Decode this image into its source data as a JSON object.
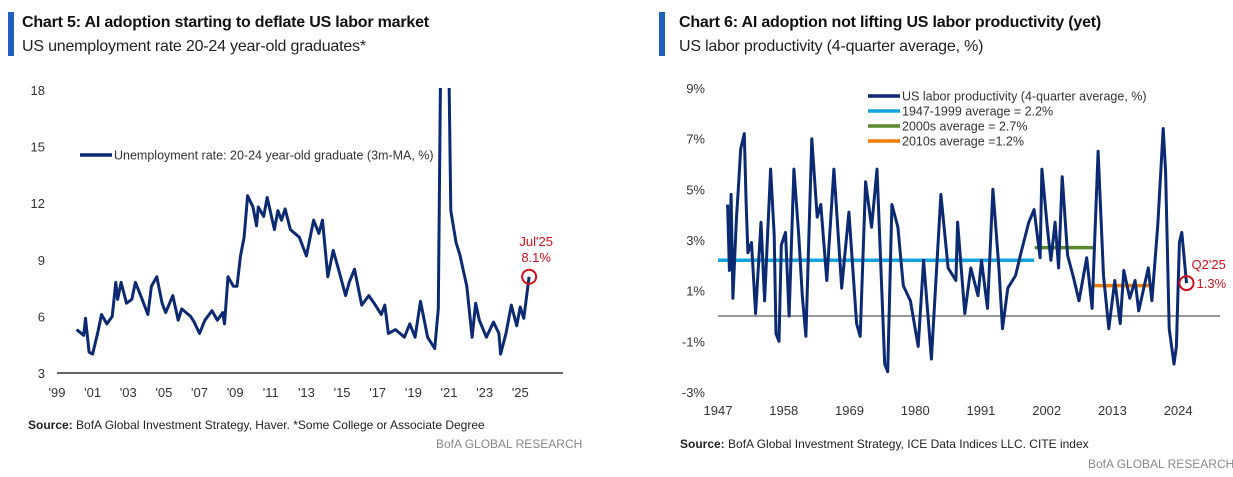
{
  "colors": {
    "accent": "#1f5fbf",
    "series": "#0b2a72",
    "highlight": "#d0101b",
    "avg_1947_1999": "#13a3e0",
    "avg_2000s": "#5a8a2f",
    "avg_2010s": "#f07d00",
    "zero_line": "#777777"
  },
  "chart_data": [
    {
      "type": "line",
      "title": "Chart 5: AI adoption starting to deflate US labor market",
      "subtitle": "US unemployment rate 20-24 year-old graduates*",
      "source_label": "Source:",
      "source": "BofA Global Investment Strategy, Haver. *Some College or Associate Degree",
      "brand": "BofA GLOBAL RESEARCH",
      "ylim": [
        3,
        18
      ],
      "xlim": [
        1999,
        2027.4
      ],
      "yticks": [
        "18",
        "15",
        "12",
        "9",
        "6",
        "3"
      ],
      "ytick_values": [
        18,
        15,
        12,
        9,
        6,
        3
      ],
      "xticks": [
        "'99",
        "'01",
        "'03",
        "'05",
        "'07",
        "'09",
        "'11",
        "'13",
        "'15",
        "'17",
        "'19",
        "'21",
        "'23",
        "'25"
      ],
      "xtick_values": [
        1999,
        2001,
        2003,
        2005,
        2007,
        2009,
        2011,
        2013,
        2015,
        2017,
        2019,
        2021,
        2023,
        2025
      ],
      "legend": "top-left",
      "grid": false,
      "series": [
        {
          "name": "Unemployment rate: 20-24 year-old graduate (3m-MA, %)",
          "x": [
            2000.1,
            2000.5,
            2000.6,
            2000.8,
            2001.0,
            2001.3,
            2001.5,
            2001.8,
            2002.1,
            2002.3,
            2002.4,
            2002.6,
            2002.9,
            2003.2,
            2003.4,
            2003.7,
            2004.1,
            2004.3,
            2004.6,
            2004.9,
            2005.1,
            2005.5,
            2005.8,
            2006.0,
            2006.5,
            2006.7,
            2007.0,
            2007.3,
            2007.7,
            2008.0,
            2008.3,
            2008.4,
            2008.6,
            2008.9,
            2009.1,
            2009.3,
            2009.5,
            2009.7,
            2010.0,
            2010.2,
            2010.3,
            2010.6,
            2010.8,
            2011.2,
            2011.4,
            2011.6,
            2011.8,
            2012.1,
            2012.6,
            2013.0,
            2013.4,
            2013.7,
            2013.9,
            2014.2,
            2014.5,
            2014.8,
            2015.2,
            2015.4,
            2015.7,
            2016.1,
            2016.5,
            2016.8,
            2017.2,
            2017.4,
            2017.6,
            2018.0,
            2018.5,
            2018.8,
            2019.1,
            2019.4,
            2019.8,
            2020.2,
            2020.4,
            2020.6,
            2020.9,
            2021.1,
            2021.4,
            2021.6,
            2022.0,
            2022.3,
            2022.5,
            2022.7,
            2023.1,
            2023.5,
            2023.8,
            2023.9,
            2024.2,
            2024.5,
            2024.8,
            2025.0,
            2025.2,
            2025.5
          ],
          "y": [
            5.3,
            5.0,
            5.9,
            4.1,
            4.0,
            5.2,
            6.1,
            5.6,
            6.0,
            7.8,
            6.9,
            7.8,
            6.7,
            6.9,
            7.8,
            7.1,
            6.1,
            7.6,
            8.1,
            6.7,
            6.2,
            7.1,
            5.8,
            6.4,
            6.0,
            5.7,
            5.1,
            5.8,
            6.3,
            5.8,
            6.2,
            5.6,
            8.1,
            7.6,
            7.6,
            9.2,
            10.2,
            12.4,
            11.8,
            10.8,
            11.8,
            11.3,
            12.3,
            10.6,
            11.6,
            11.1,
            11.7,
            10.6,
            10.2,
            9.2,
            11.1,
            10.4,
            11.1,
            8.1,
            9.5,
            8.5,
            7.1,
            7.8,
            8.5,
            6.6,
            7.1,
            6.7,
            6.1,
            6.6,
            5.1,
            5.3,
            4.9,
            5.6,
            4.9,
            6.8,
            4.9,
            4.3,
            6.4,
            26.0,
            26.0,
            11.6,
            9.9,
            9.3,
            7.6,
            4.9,
            6.7,
            5.8,
            4.9,
            5.7,
            5.1,
            4.0,
            5.1,
            6.6,
            5.5,
            6.5,
            5.9,
            8.1
          ]
        }
      ],
      "annotation": {
        "label": "Jul'25",
        "value_label": "8.1%",
        "x": 2025.5,
        "y": 8.1
      }
    },
    {
      "type": "line",
      "title": "Chart 6: AI adoption not lifting US labor productivity (yet)",
      "subtitle": "US labor productivity (4-quarter average, %)",
      "source_label": "Source:",
      "source": "BofA Global Investment Strategy, ICE Data Indices LLC. CITE index",
      "brand": "BofA GLOBAL RESEARCH",
      "ylim": [
        -3,
        9
      ],
      "xlim": [
        1947,
        2031
      ],
      "yticks": [
        "9%",
        "7%",
        "5%",
        "3%",
        "1%",
        "-1%",
        "-3%"
      ],
      "ytick_values": [
        9,
        7,
        5,
        3,
        1,
        -1,
        -3
      ],
      "xticks": [
        "1947",
        "1958",
        "1969",
        "1980",
        "1991",
        "2002",
        "2013",
        "2024"
      ],
      "xtick_values": [
        1947,
        1958,
        1969,
        1980,
        1991,
        2002,
        2013,
        2024
      ],
      "legend": "top-center",
      "grid": false,
      "series": [
        {
          "name": "US labor productivity (4-quarter average, %)",
          "x": [
            1948.6,
            1948.9,
            1949.2,
            1949.5,
            1950.1,
            1950.4,
            1950.8,
            1951.4,
            1951.7,
            1952.0,
            1952.6,
            1953.3,
            1954.2,
            1954.8,
            1955.8,
            1956.4,
            1956.7,
            1957.2,
            1957.6,
            1958.3,
            1958.9,
            1959.7,
            1960.5,
            1961.1,
            1961.7,
            1962.7,
            1963.6,
            1964.2,
            1965.2,
            1966.4,
            1967.7,
            1968.9,
            1970.2,
            1970.8,
            1971.7,
            1972.7,
            1973.6,
            1974.9,
            1975.4,
            1976.1,
            1977.1,
            1978.0,
            1979.2,
            1980.5,
            1981.4,
            1982.7,
            1984.3,
            1985.5,
            1986.8,
            1987.1,
            1988.3,
            1989.3,
            1990.5,
            1991.1,
            1992.1,
            1993.0,
            1994.0,
            1994.6,
            1995.5,
            1996.8,
            1997.7,
            1999.0,
            1999.9,
            2000.9,
            2001.2,
            2002.1,
            2002.7,
            2003.4,
            2004.0,
            2004.6,
            2005.5,
            2006.5,
            2007.4,
            2008.7,
            2009.6,
            2010.6,
            2011.5,
            2012.4,
            2013.4,
            2014.3,
            2014.9,
            2015.9,
            2016.8,
            2017.4,
            2019.0,
            2019.6,
            2020.6,
            2021.5,
            2021.9,
            2022.5,
            2023.3,
            2023.7,
            2024.2,
            2024.6,
            2025.4
          ],
          "y": [
            4.4,
            1.8,
            4.8,
            0.7,
            3.9,
            5.0,
            6.6,
            7.2,
            4.5,
            2.5,
            2.9,
            0.1,
            3.7,
            0.6,
            5.8,
            3.2,
            -0.7,
            -1.0,
            2.8,
            3.3,
            0.0,
            5.8,
            3.2,
            0.8,
            -0.8,
            7.0,
            3.9,
            4.4,
            1.4,
            5.8,
            1.1,
            4.1,
            -0.3,
            -0.8,
            5.3,
            3.5,
            5.8,
            -1.9,
            -2.2,
            4.4,
            3.5,
            1.2,
            0.6,
            -1.2,
            2.2,
            -1.7,
            4.8,
            1.9,
            1.4,
            3.7,
            0.1,
            1.9,
            0.8,
            2.2,
            0.3,
            5.0,
            1.9,
            -0.5,
            1.1,
            1.6,
            2.5,
            3.7,
            4.2,
            2.3,
            5.8,
            3.5,
            2.2,
            3.7,
            1.9,
            5.5,
            2.4,
            1.5,
            0.6,
            2.3,
            0.3,
            6.5,
            1.6,
            -0.5,
            1.4,
            -0.3,
            1.8,
            0.7,
            1.4,
            0.2,
            1.9,
            0.6,
            3.6,
            7.4,
            5.7,
            -0.5,
            -1.9,
            -1.2,
            2.9,
            3.3,
            1.3
          ]
        },
        {
          "name": "1947-1999 average = 2.2%",
          "x": [
            1947,
            1999.9
          ],
          "y": [
            2.2,
            2.2
          ]
        },
        {
          "name": "2000s average = 2.7%",
          "x": [
            2000,
            2009.9
          ],
          "y": [
            2.7,
            2.7
          ]
        },
        {
          "name": "2010s average =1.2%",
          "x": [
            2010,
            2019.9
          ],
          "y": [
            1.2,
            1.2
          ]
        }
      ],
      "annotation": {
        "label": "Q2'25",
        "value_label": "1.3%",
        "x": 2025.4,
        "y": 1.3
      }
    }
  ]
}
